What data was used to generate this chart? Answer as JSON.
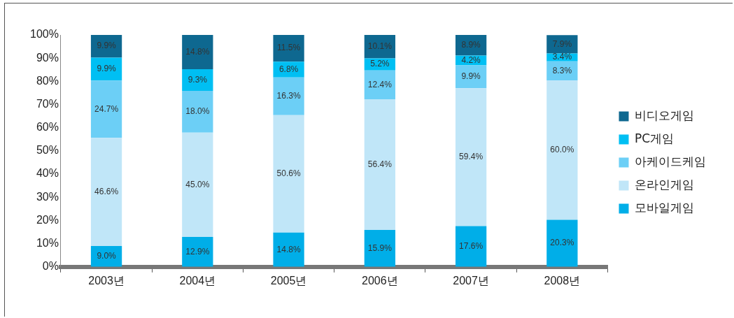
{
  "chart_data": {
    "type": "bar",
    "stacked": true,
    "categories": [
      "2003년",
      "2004년",
      "2005년",
      "2006년",
      "2007년",
      "2008년"
    ],
    "series": [
      {
        "name": "모바일게임",
        "color": "#00aee8",
        "values": [
          9.0,
          12.9,
          14.8,
          15.9,
          17.6,
          20.3
        ],
        "value_labels": [
          "9.0%",
          "12.9%",
          "14.8%",
          "15.9%",
          "17.6%",
          "20.3%"
        ]
      },
      {
        "name": "온라인게임",
        "color": "#c0e6f8",
        "values": [
          46.6,
          45.0,
          50.6,
          56.4,
          59.4,
          60.0
        ],
        "value_labels": [
          "46.6%",
          "45.0%",
          "50.6%",
          "56.4%",
          "59.4%",
          "60.0%"
        ]
      },
      {
        "name": "아케이드케임",
        "color": "#6ccff6",
        "values": [
          24.7,
          18.0,
          16.3,
          12.4,
          9.9,
          8.3
        ],
        "value_labels": [
          "24.7%",
          "18.0%",
          "16.3%",
          "12.4%",
          "9.9%",
          "8.3%"
        ]
      },
      {
        "name": "PC게임",
        "color": "#00bff3",
        "values": [
          9.9,
          9.3,
          6.8,
          5.2,
          4.2,
          3.4
        ],
        "value_labels": [
          "9.9%",
          "9.3%",
          "6.8%",
          "5.2%",
          "4.2%",
          "3.4%"
        ]
      },
      {
        "name": "비디오게임",
        "color": "#0e6890",
        "values": [
          9.9,
          14.8,
          11.5,
          10.1,
          8.9,
          7.9
        ],
        "value_labels": [
          "9.9%",
          "14.8%",
          "11.5%",
          "10.1%",
          "8.9%",
          "7.9%"
        ]
      }
    ],
    "ylim": [
      0,
      100
    ],
    "yticks": [
      {
        "value": 0,
        "label": "0%"
      },
      {
        "value": 10,
        "label": "10%"
      },
      {
        "value": 20,
        "label": "20%"
      },
      {
        "value": 30,
        "label": "30%"
      },
      {
        "value": 40,
        "label": "40%"
      },
      {
        "value": 50,
        "label": "50%"
      },
      {
        "value": 60,
        "label": "60%"
      },
      {
        "value": 70,
        "label": "70%"
      },
      {
        "value": 80,
        "label": "80%"
      },
      {
        "value": 90,
        "label": "90%"
      },
      {
        "value": 100,
        "label": "100%"
      }
    ],
    "grid": false,
    "legend": "right"
  }
}
